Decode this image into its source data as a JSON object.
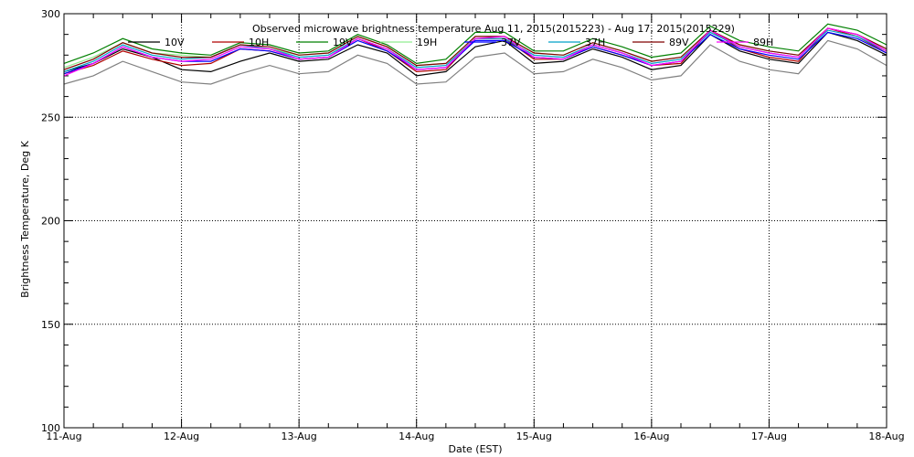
{
  "chart_data": {
    "type": "line",
    "title": "Observed microwave brightness temperature Aug 11, 2015(2015223) - Aug 17, 2015(2015229)",
    "xlabel": "Date (EST)",
    "ylabel": "Brightness Temperature, Deg K",
    "xlim": [
      "2015-08-11T00:00",
      "2015-08-18T00:00"
    ],
    "ylim": [
      100,
      300
    ],
    "x_ticks": [
      "11-Aug",
      "12-Aug",
      "13-Aug",
      "14-Aug",
      "15-Aug",
      "16-Aug",
      "17-Aug",
      "18-Aug"
    ],
    "y_ticks": [
      100,
      150,
      200,
      250,
      300
    ],
    "grid": true,
    "legend_position": "top",
    "x": [
      "2015-08-11T00:00",
      "2015-08-11T06:00",
      "2015-08-11T12:00",
      "2015-08-11T18:00",
      "2015-08-12T00:00",
      "2015-08-12T06:00",
      "2015-08-12T12:00",
      "2015-08-12T18:00",
      "2015-08-13T00:00",
      "2015-08-13T06:00",
      "2015-08-13T12:00",
      "2015-08-13T18:00",
      "2015-08-14T00:00",
      "2015-08-14T06:00",
      "2015-08-14T12:00",
      "2015-08-14T18:00",
      "2015-08-15T00:00",
      "2015-08-15T06:00",
      "2015-08-15T12:00",
      "2015-08-15T18:00",
      "2015-08-16T00:00",
      "2015-08-16T06:00",
      "2015-08-16T12:00",
      "2015-08-16T18:00",
      "2015-08-17T00:00",
      "2015-08-17T06:00",
      "2015-08-17T12:00",
      "2015-08-17T18:00",
      "2015-08-18T00:00"
    ],
    "series": [
      {
        "name": "10V",
        "color": "#000000",
        "values": [
          272,
          276,
          283,
          279,
          273,
          272,
          277,
          281,
          277,
          278,
          285,
          281,
          270,
          272,
          284,
          287,
          276,
          277,
          283,
          279,
          273,
          275,
          290,
          282,
          278,
          276,
          291,
          287,
          280
        ]
      },
      {
        "name": "10H",
        "color": "#b00000",
        "values": [
          271,
          275,
          282,
          278,
          275,
          276,
          283,
          282,
          278,
          279,
          288,
          282,
          272,
          273,
          288,
          288,
          278,
          278,
          284,
          280,
          275,
          276,
          292,
          283,
          279,
          277,
          293,
          289,
          281
        ]
      },
      {
        "name": "19V",
        "color": "#008000",
        "values": [
          276,
          281,
          288,
          283,
          281,
          280,
          286,
          285,
          281,
          282,
          290,
          285,
          276,
          278,
          291,
          291,
          282,
          282,
          288,
          284,
          279,
          281,
          294,
          287,
          284,
          282,
          295,
          292,
          285
        ]
      },
      {
        "name": "19H",
        "color": "#90ee90",
        "values": [
          274,
          279,
          286,
          281,
          280,
          279,
          285,
          283,
          280,
          281,
          289,
          284,
          275,
          276,
          289,
          289,
          281,
          280,
          286,
          282,
          277,
          279,
          292,
          285,
          282,
          280,
          293,
          290,
          283
        ]
      },
      {
        "name": "37V",
        "color": "#0000ff",
        "values": [
          271,
          276,
          284,
          279,
          277,
          277,
          283,
          282,
          278,
          279,
          287,
          282,
          273,
          274,
          287,
          287,
          279,
          278,
          284,
          280,
          275,
          277,
          290,
          283,
          280,
          278,
          291,
          288,
          281
        ]
      },
      {
        "name": "37H",
        "color": "#00a0c8",
        "values": [
          272,
          277,
          285,
          280,
          278,
          279,
          285,
          283,
          279,
          280,
          288,
          283,
          274,
          275,
          288,
          288,
          280,
          279,
          285,
          281,
          276,
          278,
          291,
          284,
          281,
          279,
          292,
          289,
          282
        ]
      },
      {
        "name": "89V",
        "color": "#800000",
        "values": [
          273,
          278,
          286,
          281,
          279,
          279,
          285,
          284,
          280,
          281,
          289,
          284,
          275,
          276,
          289,
          289,
          281,
          280,
          286,
          282,
          277,
          279,
          292,
          285,
          282,
          280,
          293,
          290,
          283
        ]
      },
      {
        "name": "89H",
        "color": "#ff00ff",
        "values": [
          270,
          276,
          284,
          279,
          277,
          278,
          284,
          283,
          278,
          279,
          288,
          283,
          273,
          274,
          288,
          289,
          279,
          278,
          285,
          281,
          275,
          277,
          292,
          284,
          281,
          279,
          293,
          290,
          282
        ]
      },
      {
        "name": "",
        "color": "#808080",
        "values": [
          266,
          270,
          277,
          272,
          267,
          266,
          271,
          275,
          271,
          272,
          280,
          276,
          266,
          267,
          279,
          281,
          271,
          272,
          278,
          274,
          268,
          270,
          285,
          277,
          273,
          271,
          287,
          283,
          275
        ]
      }
    ]
  }
}
